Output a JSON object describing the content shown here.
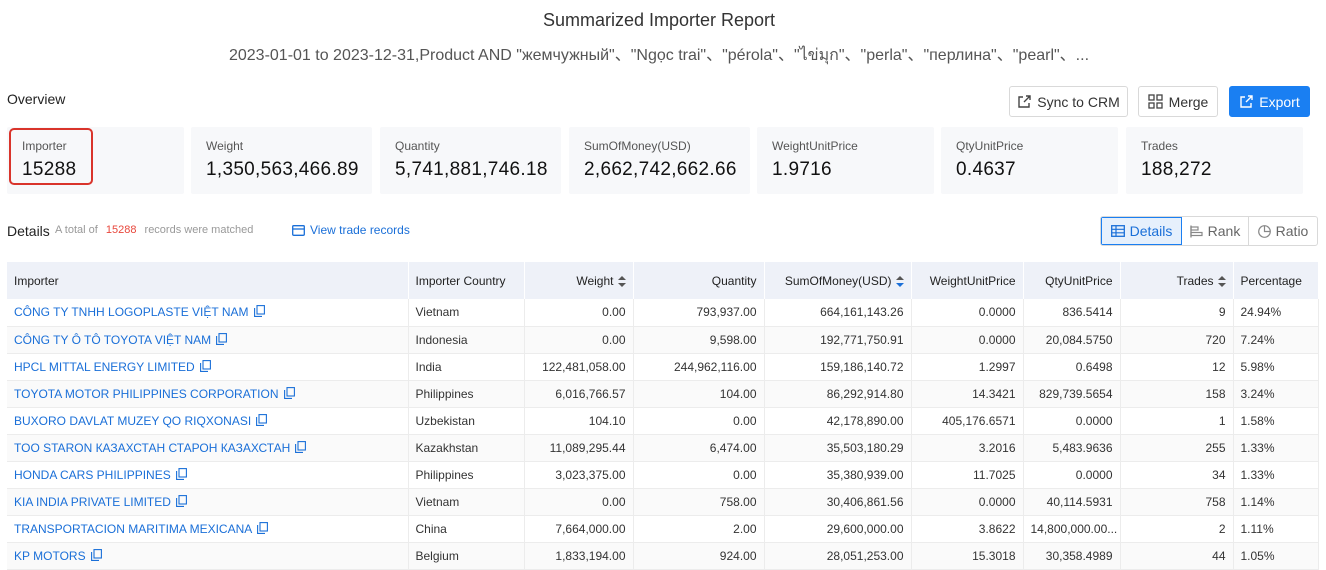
{
  "header": {
    "title": "Summarized Importer Report",
    "subtitle": "2023-01-01 to 2023-12-31,Product AND \"жемчужный\"、\"Ngọc trai\"、\"pérola\"、\"ไข่มุก\"、\"perla\"、\"перлина\"、\"pearl\"、..."
  },
  "overview": {
    "label": "Overview",
    "buttons": {
      "sync": "Sync to CRM",
      "merge": "Merge",
      "export": "Export"
    },
    "stats": [
      {
        "label": "Importer",
        "value": "15288"
      },
      {
        "label": "Weight",
        "value": "1,350,563,466.89"
      },
      {
        "label": "Quantity",
        "value": "5,741,881,746.18"
      },
      {
        "label": "SumOfMoney(USD)",
        "value": "2,662,742,662.66"
      },
      {
        "label": "WeightUnitPrice",
        "value": "1.9716"
      },
      {
        "label": "QtyUnitPrice",
        "value": "0.4637"
      },
      {
        "label": "Trades",
        "value": "188,272"
      }
    ]
  },
  "details": {
    "label": "Details",
    "total_prefix": "A total of",
    "total_count": "15288",
    "total_suffix": "records were matched",
    "view_link": "View trade records",
    "views": [
      "Details",
      "Rank",
      "Ratio"
    ]
  },
  "table": {
    "columns": [
      "Importer",
      "Importer Country",
      "Weight",
      "Quantity",
      "SumOfMoney(USD)",
      "WeightUnitPrice",
      "QtyUnitPrice",
      "Trades",
      "Percentage"
    ],
    "rows": [
      [
        "CÔNG TY TNHH LOGOPLASTE VIỆT NAM",
        "Vietnam",
        "0.00",
        "793,937.00",
        "664,161,143.26",
        "0.0000",
        "836.5414",
        "9",
        "24.94%"
      ],
      [
        "CÔNG TY Ô TÔ TOYOTA VIỆT NAM",
        "Indonesia",
        "0.00",
        "9,598.00",
        "192,771,750.91",
        "0.0000",
        "20,084.5750",
        "720",
        "7.24%"
      ],
      [
        "HPCL MITTAL ENERGY LIMITED",
        "India",
        "122,481,058.00",
        "244,962,116.00",
        "159,186,140.72",
        "1.2997",
        "0.6498",
        "12",
        "5.98%"
      ],
      [
        "TOYOTA MOTOR PHILIPPINES CORPORATION",
        "Philippines",
        "6,016,766.57",
        "104.00",
        "86,292,914.80",
        "14.3421",
        "829,739.5654",
        "158",
        "3.24%"
      ],
      [
        "BUXORO DAVLAT MUZEY QO RIQXONASI",
        "Uzbekistan",
        "104.10",
        "0.00",
        "42,178,890.00",
        "405,176.6571",
        "0.0000",
        "1",
        "1.58%"
      ],
      [
        "TOO STARON КАЗАХСТАН СТАРОН КАЗАХСТАН",
        "Kazakhstan",
        "11,089,295.44",
        "6,474.00",
        "35,503,180.29",
        "3.2016",
        "5,483.9636",
        "255",
        "1.33%"
      ],
      [
        "HONDA CARS PHILIPPINES",
        "Philippines",
        "3,023,375.00",
        "0.00",
        "35,380,939.00",
        "11.7025",
        "0.0000",
        "34",
        "1.33%"
      ],
      [
        "KIA INDIA PRIVATE LIMITED",
        "Vietnam",
        "0.00",
        "758.00",
        "30,406,861.56",
        "0.0000",
        "40,114.5931",
        "758",
        "1.14%"
      ],
      [
        "TRANSPORTACION MARITIMA MEXICANA",
        "China",
        "7,664,000.00",
        "2.00",
        "29,600,000.00",
        "3.8622",
        "14,800,000.00...",
        "2",
        "1.11%"
      ],
      [
        "KP MOTORS",
        "Belgium",
        "1,833,194.00",
        "924.00",
        "28,051,253.00",
        "15.3018",
        "30,358.4989",
        "44",
        "1.05%"
      ]
    ]
  }
}
